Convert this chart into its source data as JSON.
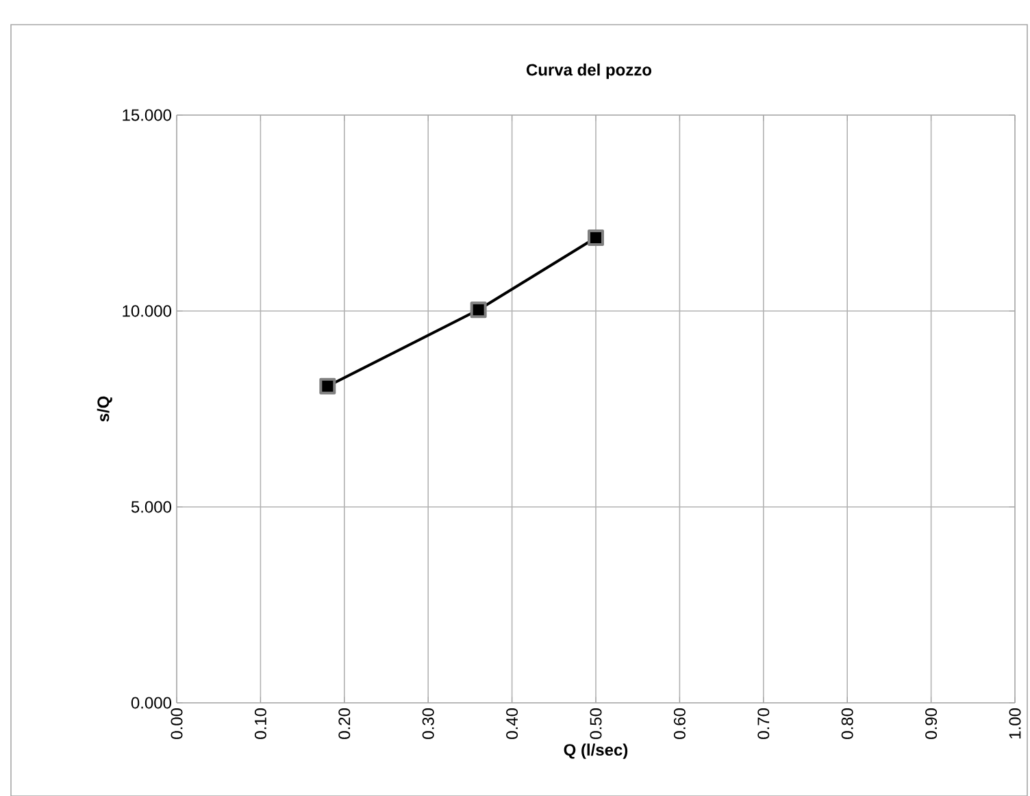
{
  "chart_data": {
    "type": "line",
    "title": "Curva del pozzo",
    "xlabel": "Q (l/sec)",
    "ylabel": "s/Q",
    "x": [
      0.18,
      0.36,
      0.5
    ],
    "series": [
      {
        "color": "#000000",
        "values": [
          8.08,
          10.03,
          11.87
        ]
      }
    ],
    "xlim": [
      0,
      1
    ],
    "ylim": [
      0,
      15
    ],
    "xticks": [
      {
        "value": 0,
        "label": "0.00"
      },
      {
        "value": 0.1,
        "label": "0.10"
      },
      {
        "value": 0.2,
        "label": "0.20"
      },
      {
        "value": 0.3,
        "label": "0.30"
      },
      {
        "value": 0.4,
        "label": "0.40"
      },
      {
        "value": 0.5,
        "label": "0.50"
      },
      {
        "value": 0.6,
        "label": "0.60"
      },
      {
        "value": 0.7,
        "label": "0.70"
      },
      {
        "value": 0.8,
        "label": "0.80"
      },
      {
        "value": 0.9,
        "label": "0.90"
      },
      {
        "value": 1,
        "label": "1.00"
      }
    ],
    "yticks": [
      {
        "value": 0,
        "label": "0.000"
      },
      {
        "value": 5,
        "label": "5.000"
      },
      {
        "value": 10,
        "label": "10.000"
      },
      {
        "value": 15,
        "label": "15.000"
      }
    ],
    "grid": true,
    "marker": "square",
    "line_style": "solid"
  }
}
